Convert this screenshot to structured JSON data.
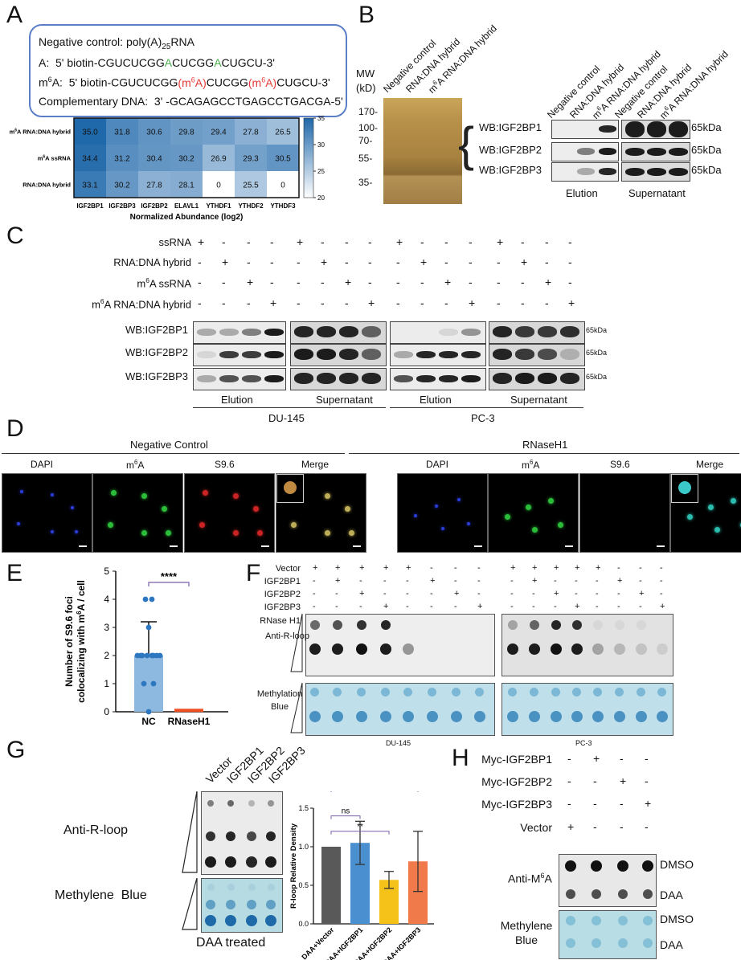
{
  "panels": {
    "A": "A",
    "B": "B",
    "C": "C",
    "D": "D",
    "E": "E",
    "F": "F",
    "G": "G",
    "H": "H"
  },
  "panelA": {
    "lines": [
      "Negative control: poly(A)25RNA",
      "A:  5' biotin-CGUCUCGGACUCGGACUGCU-3'",
      "m6A:  5' biotin-CGUCUCGG(m6A)CUCGG(m6A)CUGCU-3'",
      "Complementary DNA:  3' -GCAGAGCCTGAGCCTGACGA-5'"
    ],
    "heatmap": {
      "rows": [
        "m6A RNA:DNA hybrid",
        "m6A ssRNA",
        "RNA:DNA hybrid"
      ],
      "cols": [
        "IGF2BP1",
        "IGF2BP3",
        "IGF2BP2",
        "ELAVL1",
        "YTHDF1",
        "YTHDF2",
        "YTHDF3"
      ],
      "xlabel": "Normalized Abundance (log2)",
      "colorbar_ticks": [
        "35",
        "30",
        "25",
        "20"
      ]
    }
  },
  "chart_data": [
    {
      "type": "heatmap",
      "title": "",
      "xlabel": "Normalized Abundance (log2)",
      "x": [
        "IGF2BP1",
        "IGF2BP3",
        "IGF2BP2",
        "ELAVL1",
        "YTHDF1",
        "YTHDF2",
        "YTHDF3"
      ],
      "y": [
        "m6A RNA:DNA hybrid",
        "m6A ssRNA",
        "RNA:DNA hybrid"
      ],
      "values": [
        [
          35.0,
          31.8,
          30.6,
          29.8,
          29.4,
          27.8,
          26.5
        ],
        [
          34.4,
          31.2,
          30.4,
          30.2,
          26.9,
          29.3,
          30.5
        ],
        [
          33.1,
          30.2,
          27.8,
          28.1,
          0,
          25.5,
          0
        ]
      ],
      "labels": [
        [
          "35.0",
          "31.8",
          "30.6",
          "29.8",
          "29.4",
          "27.8",
          "26.5"
        ],
        [
          "34.4",
          "31.2",
          "30.4",
          "30.2",
          "26.9",
          "29.3",
          "30.5"
        ],
        [
          "33.1",
          "30.2",
          "27.8",
          "28.1",
          "0",
          "25.5",
          "0"
        ]
      ],
      "zlim": [
        20,
        35
      ]
    },
    {
      "type": "scatter",
      "xlabel": "",
      "ylabel": "Number of S9.6 foci colocalizing with m6A / cell",
      "categories": [
        "NC",
        "RNaseH1"
      ],
      "means": [
        2.0,
        0.05
      ],
      "sd_upper": [
        3.2,
        0.05
      ],
      "points_NC": [
        4,
        4,
        3,
        2,
        2,
        2,
        2,
        2,
        2,
        2,
        2,
        1,
        1,
        0
      ],
      "points_RNaseH1": [
        0,
        0,
        0,
        0,
        0,
        0,
        0,
        0,
        0,
        0
      ],
      "ylim": [
        0,
        5
      ],
      "yticks": [
        "0",
        "1",
        "2",
        "3",
        "4",
        "5"
      ],
      "significance": "****"
    },
    {
      "type": "bar",
      "xlabel": "",
      "ylabel": "R-loop Relative Density",
      "categories": [
        "DAA+Vector",
        "DAA+IGF2BP1",
        "DAA+IGF2BP2",
        "DAA+IGF2BP3"
      ],
      "values": [
        1.0,
        1.05,
        0.57,
        0.81
      ],
      "errors": [
        0,
        0.28,
        0.11,
        0.39
      ],
      "colors": [
        "#595959",
        "#4a90d0",
        "#f5c21a",
        "#f07a4a"
      ],
      "ylim": [
        0,
        1.5
      ],
      "yticks": [
        "0.0",
        "0.5",
        "1.0",
        "1.5"
      ],
      "significance": [
        {
          "from": "DAA+Vector",
          "to": "DAA+IGF2BP1",
          "label": "ns"
        },
        {
          "from": "DAA+Vector",
          "to": "DAA+IGF2BP2",
          "label": "**"
        },
        {
          "from": "DAA+Vector",
          "to": "DAA+IGF2BP3",
          "label": "ns"
        }
      ]
    }
  ],
  "panelB": {
    "mw_title": "MW",
    "mw_unit": "(kD)",
    "mw_ticks": [
      "170-",
      "100-",
      "70-",
      "55-",
      "35-"
    ],
    "silver_lanes": [
      "Negative control",
      "RNA:DNA hybrid",
      "m6A RNA:DNA hybrid"
    ],
    "wb_lanes": [
      "Negative control",
      "RNA:DNA hybrid",
      "m6A RNA:DNA hybrid",
      "Negative control",
      "RNA:DNA hybrid",
      "m6A RNA:DNA hybrid"
    ],
    "wb_rows": [
      "WB:IGF2BP1",
      "WB:IGF2BP2",
      "WB:IGF2BP3"
    ],
    "kda": "65kDa",
    "groups": [
      "Elution",
      "Supernatant"
    ]
  },
  "panelC": {
    "conditions": [
      "ssRNA",
      "RNA:DNA hybrid",
      "m6A ssRNA",
      "m6A RNA:DNA hybrid"
    ],
    "signs": [
      [
        "+",
        "-",
        "-",
        "-",
        "+",
        "-",
        "-",
        "-",
        "+",
        "-",
        "-",
        "-",
        "+",
        "-",
        "-",
        "-"
      ],
      [
        "-",
        "+",
        "-",
        "-",
        "-",
        "+",
        "-",
        "-",
        "-",
        "+",
        "-",
        "-",
        "-",
        "+",
        "-",
        "-"
      ],
      [
        "-",
        "-",
        "+",
        "-",
        "-",
        "-",
        "+",
        "-",
        "-",
        "-",
        "+",
        "-",
        "-",
        "-",
        "+",
        "-"
      ],
      [
        "-",
        "-",
        "-",
        "+",
        "-",
        "-",
        "-",
        "+",
        "-",
        "-",
        "-",
        "+",
        "-",
        "-",
        "-",
        "+"
      ]
    ],
    "rows": [
      "WB:IGF2BP1",
      "WB:IGF2BP2",
      "WB:IGF2BP3"
    ],
    "kda": "65kDa",
    "groups": [
      "Elution",
      "Supernatant",
      "Elution",
      "Supernatant"
    ],
    "cells": [
      "DU-145",
      "PC-3"
    ]
  },
  "panelD": {
    "conditions": [
      "Negative Control",
      "RNaseH1"
    ],
    "channels": [
      "DAPI",
      "m6A",
      "S9.6",
      "Merge",
      "DAPI",
      "m6A",
      "S9.6",
      "Merge"
    ]
  },
  "panelF": {
    "conditions": [
      "Vector",
      "IGF2BP1",
      "IGF2BP2",
      "IGF2BP3",
      "RNase H1"
    ],
    "signs": [
      [
        "+",
        "+",
        "+",
        "+",
        "+",
        "-",
        "-",
        "-",
        "+",
        "+",
        "+",
        "+",
        "+",
        "-",
        "-",
        "-"
      ],
      [
        "-",
        "+",
        "-",
        "-",
        "-",
        "+",
        "-",
        "-",
        "-",
        "+",
        "-",
        "-",
        "-",
        "+",
        "-",
        "-"
      ],
      [
        "-",
        "-",
        "+",
        "-",
        "-",
        "-",
        "+",
        "-",
        "-",
        "-",
        "+",
        "-",
        "-",
        "-",
        "+",
        "-"
      ],
      [
        "-",
        "-",
        "-",
        "+",
        "-",
        "-",
        "-",
        "+",
        "-",
        "-",
        "-",
        "+",
        "-",
        "-",
        "-",
        "+"
      ],
      [
        "-",
        "-",
        "-",
        "-",
        "+",
        "+",
        "+",
        "+",
        "-",
        "-",
        "-",
        "-",
        "+",
        "+",
        "+",
        "+"
      ]
    ],
    "row_labels": [
      "Anti-R-loop",
      "Methylation Blue"
    ],
    "cells": [
      "DU-145",
      "PC-3"
    ]
  },
  "panelG": {
    "lanes": [
      "Vector",
      "IGF2BP1",
      "IGF2BP2",
      "IGF2BP3"
    ],
    "row_labels": [
      "Anti-R-loop",
      "Methylene  Blue"
    ],
    "caption": "DAA treated"
  },
  "panelH": {
    "conditions": [
      "Myc-IGF2BP1",
      "Myc-IGF2BP2",
      "Myc-IGF2BP3",
      "Vector"
    ],
    "signs": [
      [
        "-",
        "+",
        "-",
        "-"
      ],
      [
        "-",
        "-",
        "+",
        "-"
      ],
      [
        "-",
        "-",
        "-",
        "+"
      ],
      [
        "+",
        "-",
        "-",
        "-"
      ]
    ],
    "row_labels": [
      "Anti-M6A",
      "Methylene Blue"
    ],
    "treatments": [
      "DMSO",
      "DAA",
      "DMSO",
      "DAA"
    ]
  }
}
